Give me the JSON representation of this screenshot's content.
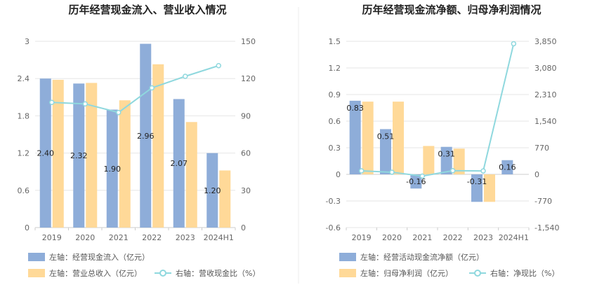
{
  "colors": {
    "blue": "#8eadd9",
    "orange": "#ffd998",
    "teal": "#8fd8de",
    "grid": "#e6e6e6",
    "divider": "#eeeeee"
  },
  "chart_data": [
    {
      "type": "bar+line",
      "title": "历年经营现金流入、营业收入情况",
      "categories": [
        "2019",
        "2020",
        "2021",
        "2022",
        "2023",
        "2024H1"
      ],
      "left_axis": {
        "min": 0,
        "max": 3,
        "ticks": [
          "0",
          "0.6",
          "1.2",
          "1.8",
          "2.4",
          "3"
        ]
      },
      "right_axis": {
        "min": 0,
        "max": 150,
        "ticks": [
          "0",
          "30",
          "60",
          "90",
          "120",
          "150"
        ]
      },
      "series": [
        {
          "name": "左轴：经营现金流入（亿元）",
          "type": "bar",
          "axis": "left",
          "color": "#8eadd9",
          "values": [
            2.4,
            2.32,
            1.9,
            2.96,
            2.07,
            1.2
          ],
          "labels": [
            "2.40",
            "2.32",
            "1.90",
            "2.96",
            "2.07",
            "1.20"
          ]
        },
        {
          "name": "左轴：营业总收入（亿元）",
          "type": "bar",
          "axis": "left",
          "color": "#ffd998",
          "values": [
            2.38,
            2.33,
            2.05,
            2.63,
            1.7,
            0.92
          ]
        },
        {
          "name": "右轴：营收现金比（%）",
          "type": "line",
          "axis": "right",
          "color": "#8fd8de",
          "values": [
            100.8,
            99.6,
            92.7,
            112.5,
            121.8,
            130.4
          ]
        }
      ]
    },
    {
      "type": "bar+line",
      "title": "历年经营现金流净额、归母净利润情况",
      "categories": [
        "2019",
        "2020",
        "2021",
        "2022",
        "2023",
        "2024H1"
      ],
      "left_axis": {
        "min": -0.6,
        "max": 1.5,
        "ticks": [
          "-0.6",
          "-0.3",
          "0",
          "0.3",
          "0.6",
          "0.9",
          "1.2",
          "1.5"
        ]
      },
      "right_axis": {
        "min": -1540,
        "max": 3850,
        "ticks": [
          "-1,540",
          "-770",
          "0",
          "770",
          "1,540",
          "2,310",
          "3,080",
          "3,850"
        ]
      },
      "series": [
        {
          "name": "左轴：经营活动现金流净额（亿元）",
          "type": "bar",
          "axis": "left",
          "color": "#8eadd9",
          "values": [
            0.83,
            0.51,
            -0.16,
            0.31,
            -0.31,
            0.16
          ],
          "labels": [
            "0.83",
            "0.51",
            "-0.16",
            "0.31",
            "-0.31",
            "0.16"
          ]
        },
        {
          "name": "左轴：归母净利润（亿元）",
          "type": "bar",
          "axis": "left",
          "color": "#ffd998",
          "values": [
            0.82,
            0.82,
            0.32,
            0.29,
            -0.31,
            0.0
          ]
        },
        {
          "name": "右轴：净现比（%）",
          "type": "line",
          "axis": "right",
          "color": "#8fd8de",
          "values": [
            101,
            62,
            -50,
            107,
            100,
            3780
          ]
        }
      ]
    }
  ]
}
